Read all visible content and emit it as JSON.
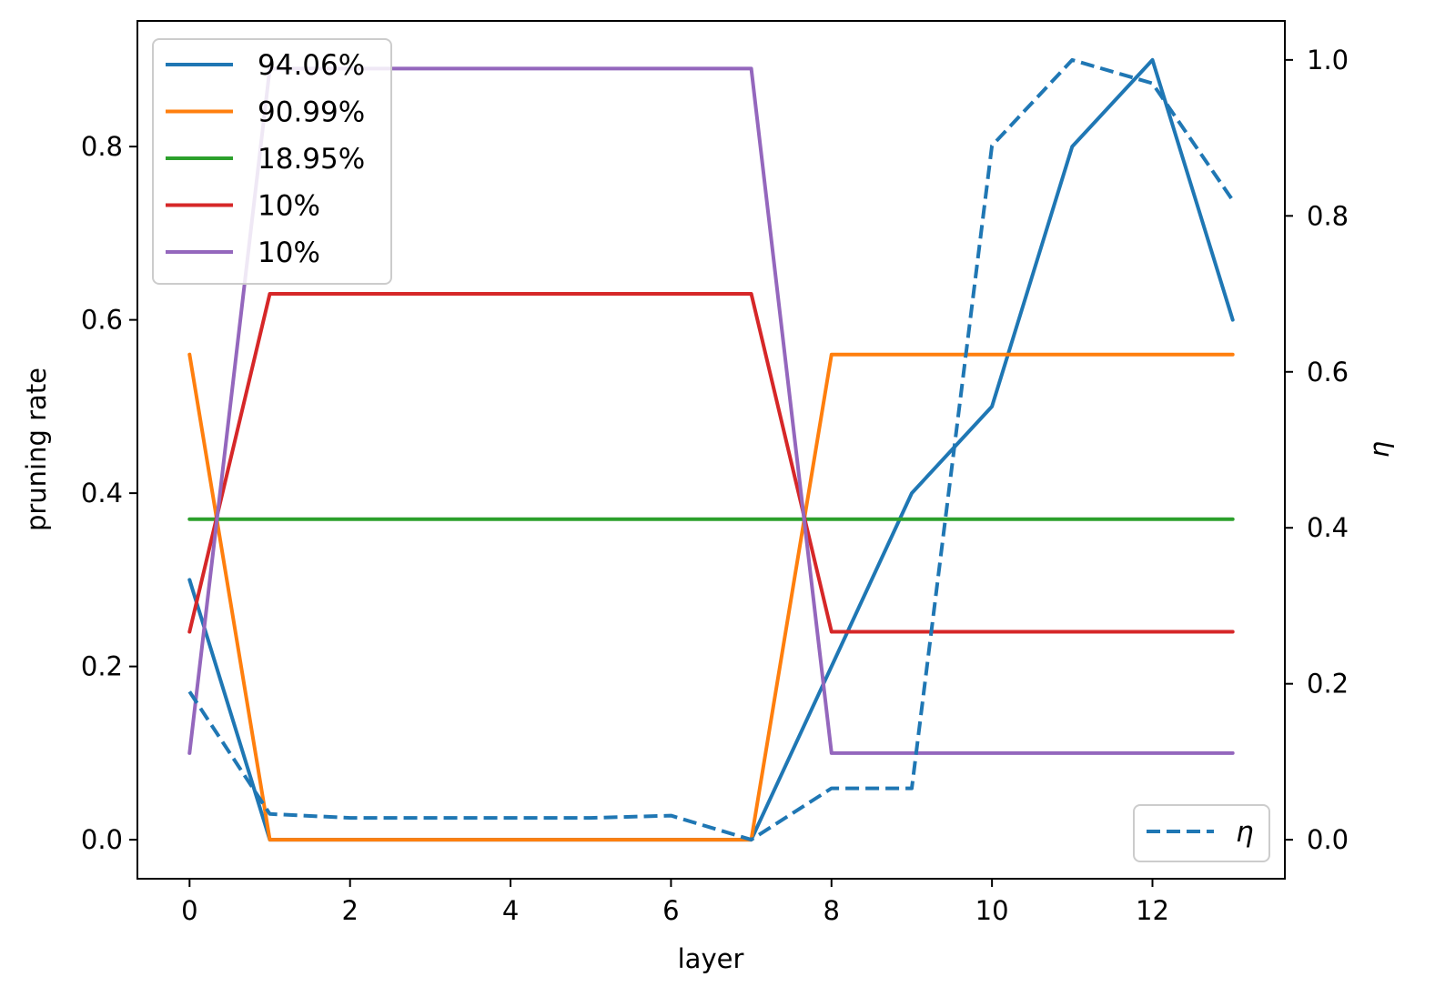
{
  "chart_data": {
    "type": "line",
    "title": "",
    "xlabel": "layer",
    "ylabel": "pruning rate",
    "y2label": "η",
    "x": [
      0,
      1,
      2,
      3,
      4,
      5,
      6,
      7,
      8,
      9,
      10,
      11,
      12,
      13
    ],
    "xlim": [
      -0.65,
      13.65
    ],
    "ylim": [
      -0.045,
      0.945
    ],
    "y2lim": [
      -0.05,
      1.05
    ],
    "xticks": [
      0,
      2,
      4,
      6,
      8,
      10,
      12
    ],
    "yticks": [
      0.0,
      0.2,
      0.4,
      0.6,
      0.8
    ],
    "y2ticks": [
      0.0,
      0.2,
      0.4,
      0.6,
      0.8,
      1.0
    ],
    "grid": false,
    "legend_placement": "upper-left",
    "legend2_placement": "lower-right",
    "series": [
      {
        "name": "94.06%",
        "axis": "left",
        "color": "#1f77b4",
        "style": "solid",
        "values": [
          0.3,
          0.0,
          0.0,
          0.0,
          0.0,
          0.0,
          0.0,
          0.0,
          0.2,
          0.4,
          0.5,
          0.8,
          0.9,
          0.6
        ]
      },
      {
        "name": "90.99%",
        "axis": "left",
        "color": "#ff7f0e",
        "style": "solid",
        "values": [
          0.56,
          0.0,
          0.0,
          0.0,
          0.0,
          0.0,
          0.0,
          0.0,
          0.56,
          0.56,
          0.56,
          0.56,
          0.56,
          0.56
        ]
      },
      {
        "name": "18.95%",
        "axis": "left",
        "color": "#2ca02c",
        "style": "solid",
        "values": [
          0.37,
          0.37,
          0.37,
          0.37,
          0.37,
          0.37,
          0.37,
          0.37,
          0.37,
          0.37,
          0.37,
          0.37,
          0.37,
          0.37
        ]
      },
      {
        "name": "10%",
        "axis": "left",
        "color": "#d62728",
        "style": "solid",
        "values": [
          0.24,
          0.63,
          0.63,
          0.63,
          0.63,
          0.63,
          0.63,
          0.63,
          0.24,
          0.24,
          0.24,
          0.24,
          0.24,
          0.24
        ]
      },
      {
        "name": "10%",
        "axis": "left",
        "color": "#9467bd",
        "style": "solid",
        "values": [
          0.1,
          0.89,
          0.89,
          0.89,
          0.89,
          0.89,
          0.89,
          0.89,
          0.1,
          0.1,
          0.1,
          0.1,
          0.1,
          0.1
        ]
      },
      {
        "name": "η",
        "axis": "right",
        "color": "#1f77b4",
        "style": "dashed",
        "values": [
          0.19,
          0.033,
          0.028,
          0.028,
          0.028,
          0.028,
          0.031,
          0.0,
          0.066,
          0.066,
          0.89,
          1.0,
          0.97,
          0.82
        ]
      }
    ]
  }
}
